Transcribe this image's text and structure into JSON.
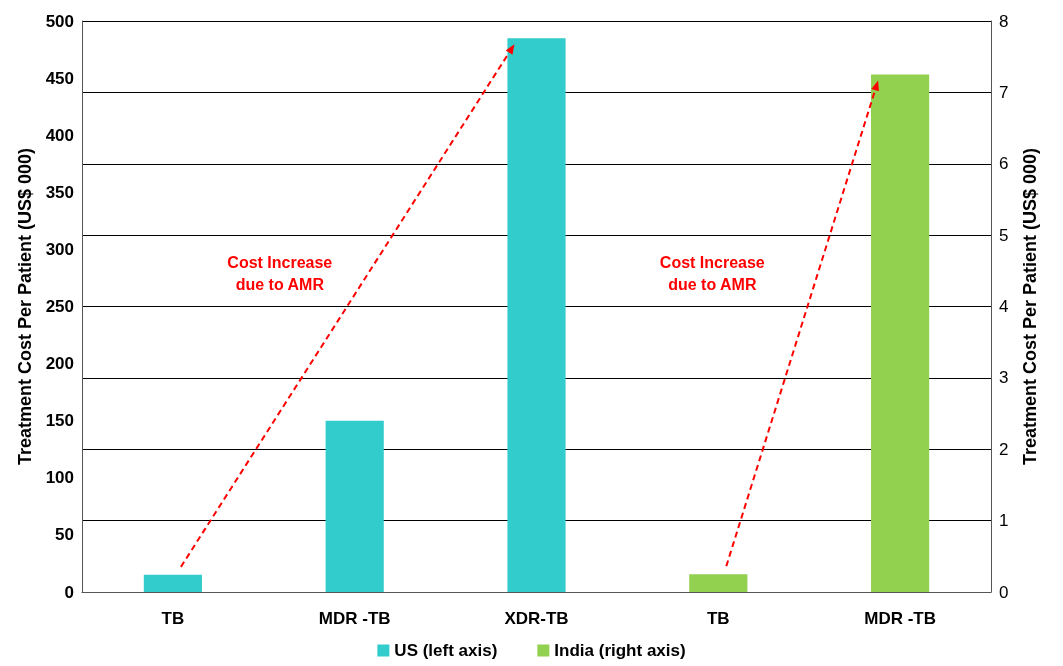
{
  "chart_data": {
    "type": "bar",
    "ylabel": "Treatment Cost Per Patient (US$ 000)",
    "y2label": "Treatment Cost Per Patient (US$ 000)",
    "categories": [
      "TB",
      "MDR -TB",
      "XDR-TB",
      "TB",
      "MDR -TB"
    ],
    "series": [
      {
        "name": "US (left axis)",
        "color": "#33cccc",
        "axis": "y",
        "values": [
          15,
          150,
          485,
          null,
          null
        ]
      },
      {
        "name": "India (right axis)",
        "color": "#92d050",
        "axis": "y2",
        "values": [
          null,
          null,
          null,
          0.25,
          7.25
        ]
      }
    ],
    "ylim": [
      0,
      500
    ],
    "yticks": [
      0,
      50,
      100,
      150,
      200,
      250,
      300,
      350,
      400,
      450,
      500
    ],
    "y2lim": [
      0,
      8
    ],
    "y2ticks": [
      0,
      1,
      2,
      3,
      4,
      5,
      6,
      7,
      8
    ],
    "annotations": [
      "Cost Increase\ndue to AMR",
      "Cost Increase\ndue to AMR"
    ],
    "grid": true,
    "legend": "bottom"
  }
}
